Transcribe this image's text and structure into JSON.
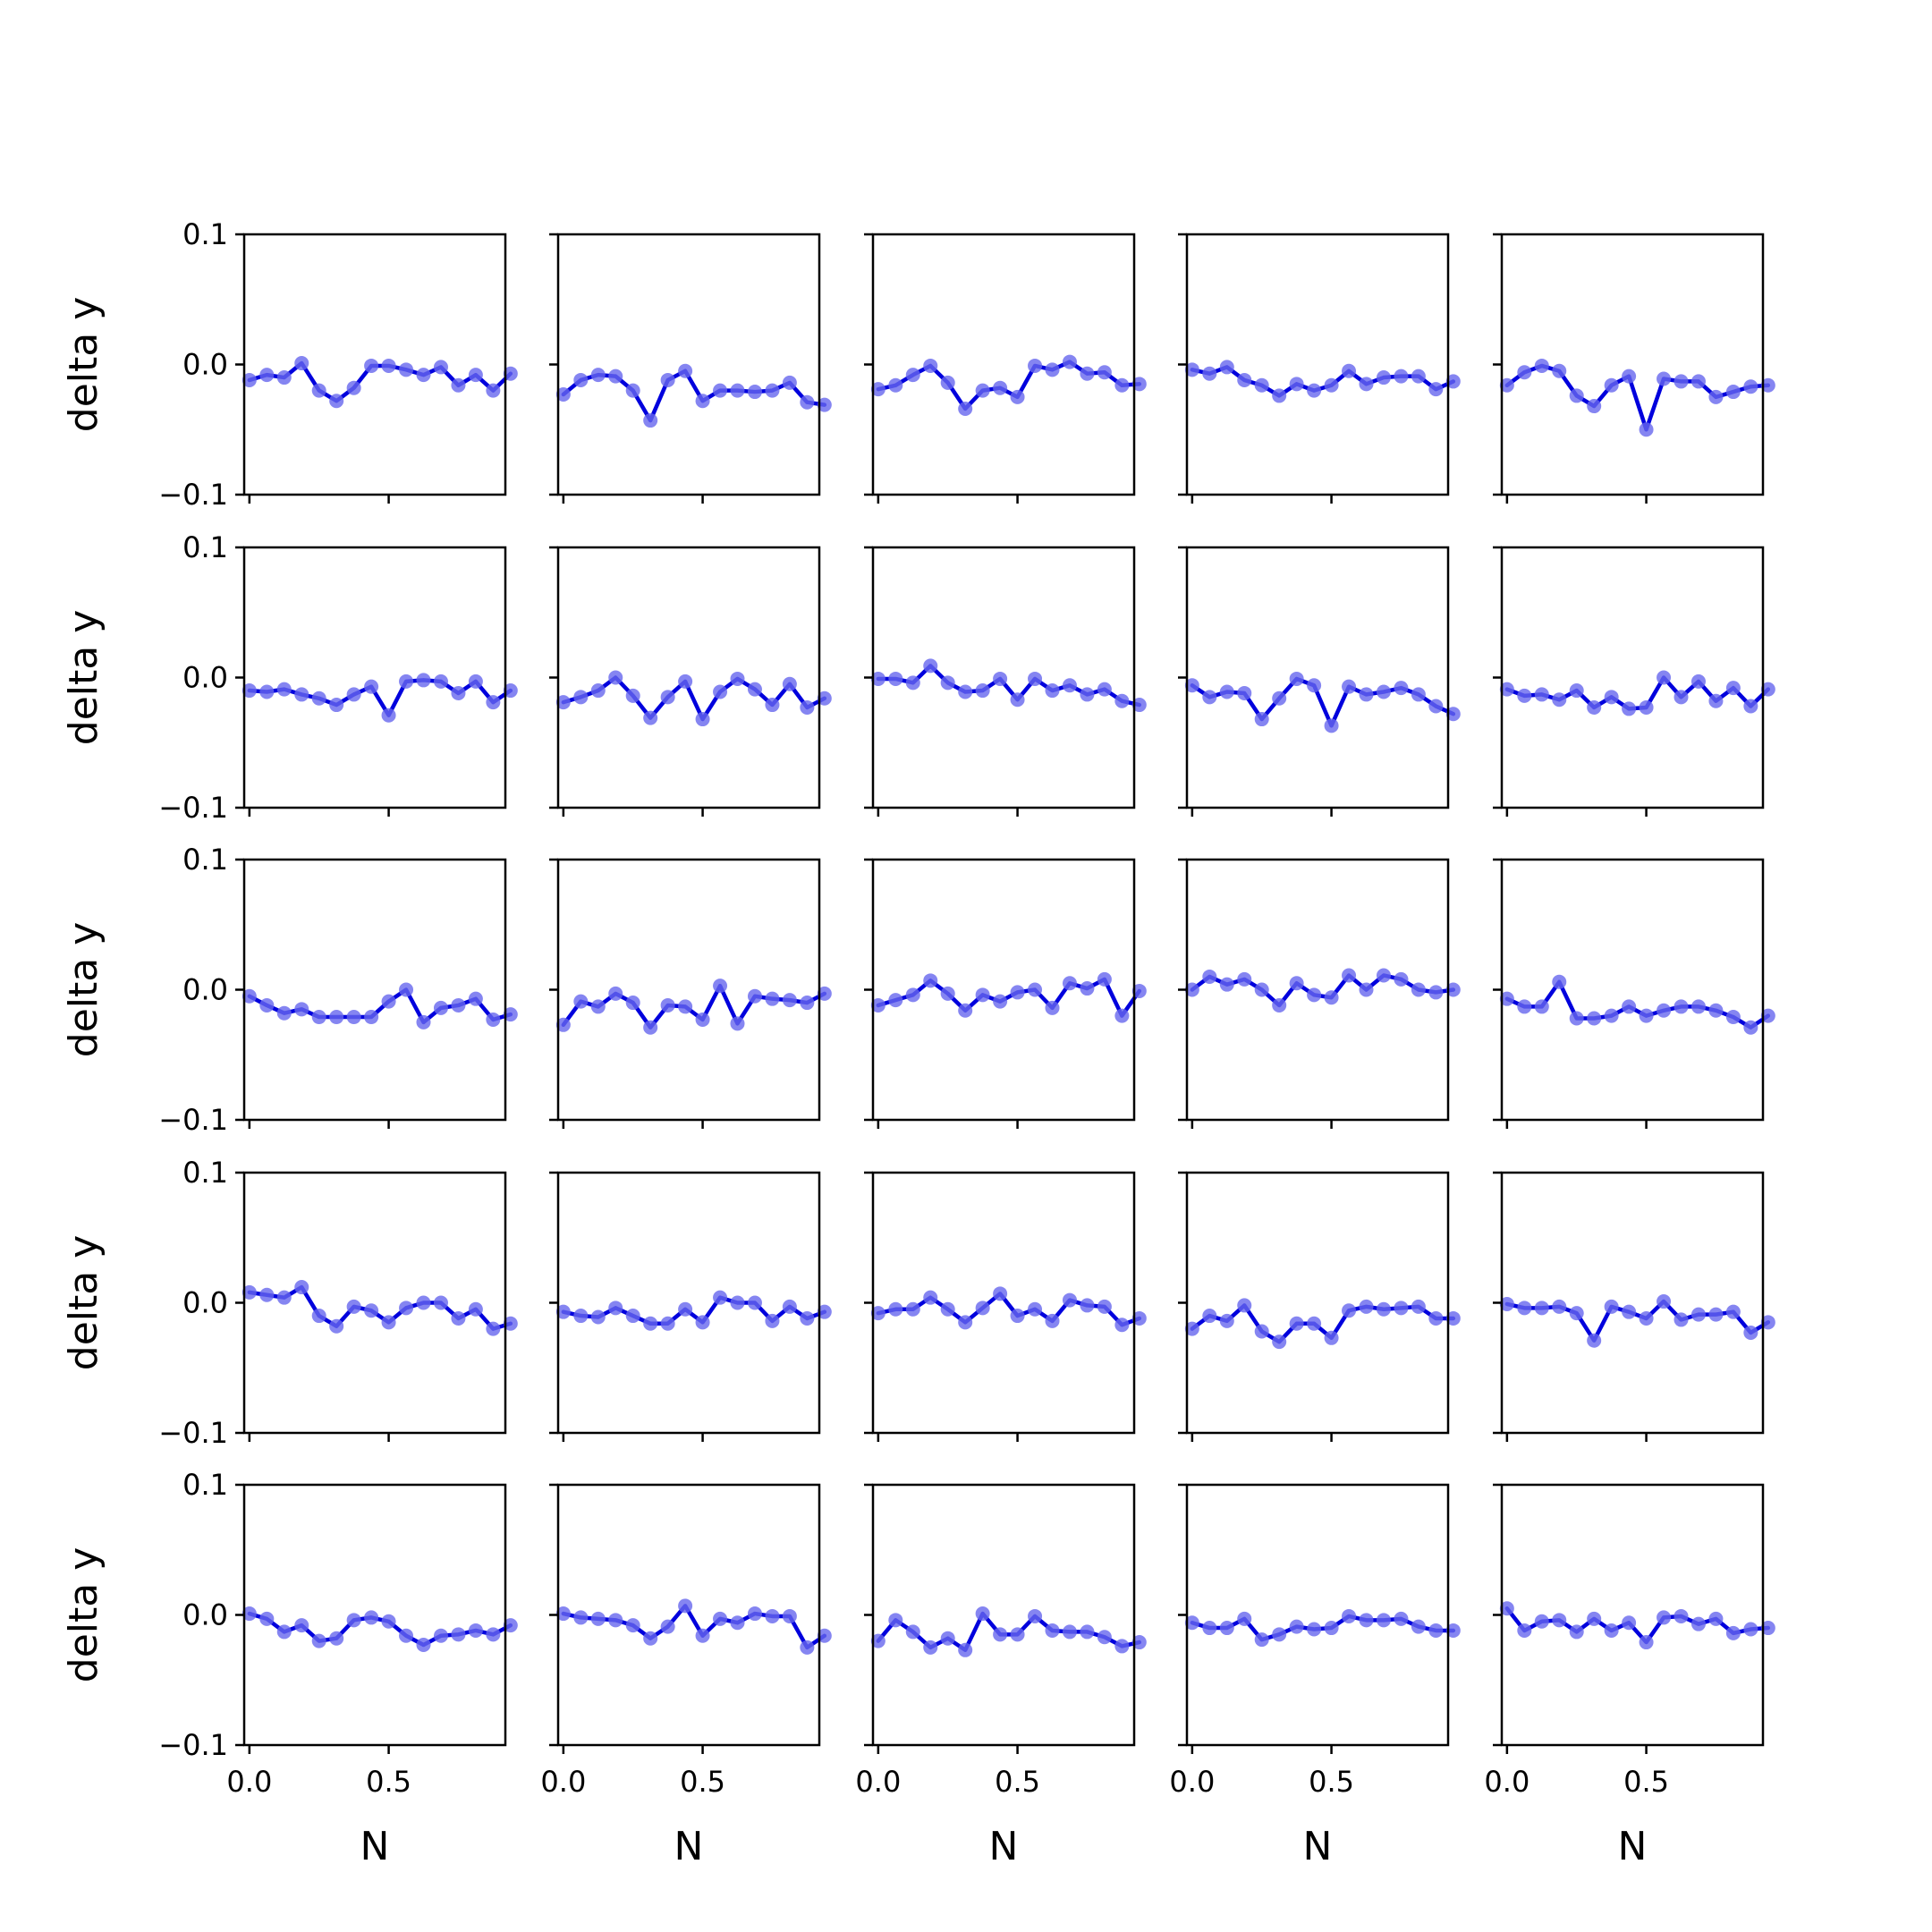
{
  "chart_data": {
    "type": "line",
    "layout": "5x5 grid of subplots",
    "xlabel": "N",
    "ylabel": "delta y",
    "xlim": [
      -0.0188,
      0.9188
    ],
    "ylim": [
      -0.1,
      0.1
    ],
    "xticks": [
      0.0,
      0.5
    ],
    "xtick_labels": [
      "0.0",
      "0.5"
    ],
    "yticks": [
      -0.1,
      0.0,
      0.1
    ],
    "ytick_labels": [
      "−0.1",
      "0.0",
      "0.1"
    ],
    "line_color": "#0000dd",
    "marker_color": "#6666ee",
    "x": [
      0.0,
      0.0625,
      0.125,
      0.1875,
      0.25,
      0.3125,
      0.375,
      0.4375,
      0.5,
      0.5625,
      0.625,
      0.6875,
      0.75,
      0.8125,
      0.875,
      0.9375
    ],
    "subplots": [
      {
        "row": 0,
        "col": 0,
        "values": [
          -0.012,
          -0.008,
          -0.01,
          0.001,
          -0.02,
          -0.028,
          -0.018,
          -0.001,
          -0.001,
          -0.004,
          -0.008,
          -0.002,
          -0.016,
          -0.008,
          -0.02,
          -0.007
        ]
      },
      {
        "row": 0,
        "col": 1,
        "values": [
          -0.023,
          -0.012,
          -0.008,
          -0.009,
          -0.02,
          -0.043,
          -0.012,
          -0.005,
          -0.028,
          -0.02,
          -0.02,
          -0.021,
          -0.02,
          -0.014,
          -0.029,
          -0.031
        ]
      },
      {
        "row": 0,
        "col": 2,
        "values": [
          -0.019,
          -0.016,
          -0.008,
          -0.001,
          -0.014,
          -0.034,
          -0.02,
          -0.018,
          -0.025,
          -0.001,
          -0.004,
          0.002,
          -0.007,
          -0.006,
          -0.016,
          -0.015
        ]
      },
      {
        "row": 0,
        "col": 3,
        "values": [
          -0.004,
          -0.007,
          -0.002,
          -0.012,
          -0.016,
          -0.024,
          -0.015,
          -0.02,
          -0.016,
          -0.005,
          -0.015,
          -0.01,
          -0.009,
          -0.009,
          -0.019,
          -0.013
        ]
      },
      {
        "row": 0,
        "col": 4,
        "values": [
          -0.016,
          -0.006,
          -0.001,
          -0.005,
          -0.024,
          -0.032,
          -0.016,
          -0.009,
          -0.05,
          -0.011,
          -0.013,
          -0.013,
          -0.025,
          -0.021,
          -0.017,
          -0.016
        ]
      },
      {
        "row": 1,
        "col": 0,
        "values": [
          -0.01,
          -0.011,
          -0.009,
          -0.013,
          -0.016,
          -0.021,
          -0.013,
          -0.007,
          -0.029,
          -0.003,
          -0.002,
          -0.003,
          -0.012,
          -0.003,
          -0.019,
          -0.01
        ]
      },
      {
        "row": 1,
        "col": 1,
        "values": [
          -0.019,
          -0.015,
          -0.01,
          0.0,
          -0.014,
          -0.031,
          -0.015,
          -0.003,
          -0.032,
          -0.011,
          -0.001,
          -0.009,
          -0.021,
          -0.005,
          -0.023,
          -0.016
        ]
      },
      {
        "row": 1,
        "col": 2,
        "values": [
          -0.001,
          -0.001,
          -0.004,
          0.009,
          -0.004,
          -0.011,
          -0.01,
          -0.001,
          -0.017,
          -0.001,
          -0.01,
          -0.006,
          -0.013,
          -0.009,
          -0.018,
          -0.021
        ]
      },
      {
        "row": 1,
        "col": 3,
        "values": [
          -0.006,
          -0.015,
          -0.011,
          -0.012,
          -0.032,
          -0.016,
          -0.001,
          -0.006,
          -0.037,
          -0.007,
          -0.013,
          -0.011,
          -0.008,
          -0.013,
          -0.022,
          -0.028
        ]
      },
      {
        "row": 1,
        "col": 4,
        "values": [
          -0.009,
          -0.014,
          -0.013,
          -0.017,
          -0.01,
          -0.023,
          -0.015,
          -0.024,
          -0.023,
          0.0,
          -0.015,
          -0.003,
          -0.018,
          -0.008,
          -0.022,
          -0.009
        ]
      },
      {
        "row": 2,
        "col": 0,
        "values": [
          -0.005,
          -0.012,
          -0.018,
          -0.015,
          -0.021,
          -0.021,
          -0.021,
          -0.021,
          -0.009,
          0.0,
          -0.025,
          -0.014,
          -0.012,
          -0.007,
          -0.023,
          -0.019
        ]
      },
      {
        "row": 2,
        "col": 1,
        "values": [
          -0.027,
          -0.009,
          -0.013,
          -0.003,
          -0.01,
          -0.029,
          -0.012,
          -0.013,
          -0.023,
          0.003,
          -0.026,
          -0.005,
          -0.007,
          -0.008,
          -0.01,
          -0.003
        ]
      },
      {
        "row": 2,
        "col": 2,
        "values": [
          -0.012,
          -0.008,
          -0.004,
          0.007,
          -0.003,
          -0.016,
          -0.004,
          -0.009,
          -0.002,
          0.0,
          -0.014,
          0.005,
          0.001,
          0.008,
          -0.02,
          -0.001
        ]
      },
      {
        "row": 2,
        "col": 3,
        "values": [
          0.0,
          0.01,
          0.004,
          0.008,
          0.0,
          -0.012,
          0.005,
          -0.004,
          -0.006,
          0.011,
          0.0,
          0.011,
          0.008,
          0.0,
          -0.002,
          0.0
        ]
      },
      {
        "row": 2,
        "col": 4,
        "values": [
          -0.007,
          -0.013,
          -0.013,
          0.006,
          -0.022,
          -0.022,
          -0.02,
          -0.013,
          -0.02,
          -0.016,
          -0.013,
          -0.013,
          -0.016,
          -0.021,
          -0.029,
          -0.02
        ]
      },
      {
        "row": 3,
        "col": 0,
        "values": [
          0.008,
          0.006,
          0.004,
          0.012,
          -0.01,
          -0.018,
          -0.003,
          -0.006,
          -0.015,
          -0.004,
          0.0,
          0.0,
          -0.012,
          -0.005,
          -0.02,
          -0.016
        ]
      },
      {
        "row": 3,
        "col": 1,
        "values": [
          -0.007,
          -0.01,
          -0.011,
          -0.004,
          -0.01,
          -0.016,
          -0.016,
          -0.005,
          -0.015,
          0.004,
          0.0,
          0.0,
          -0.014,
          -0.003,
          -0.012,
          -0.007
        ]
      },
      {
        "row": 3,
        "col": 2,
        "values": [
          -0.008,
          -0.005,
          -0.005,
          0.004,
          -0.005,
          -0.015,
          -0.004,
          0.007,
          -0.01,
          -0.005,
          -0.014,
          0.002,
          -0.002,
          -0.003,
          -0.017,
          -0.012
        ]
      },
      {
        "row": 3,
        "col": 3,
        "values": [
          -0.02,
          -0.01,
          -0.014,
          -0.002,
          -0.022,
          -0.03,
          -0.016,
          -0.016,
          -0.027,
          -0.006,
          -0.003,
          -0.005,
          -0.004,
          -0.003,
          -0.012,
          -0.012
        ]
      },
      {
        "row": 3,
        "col": 4,
        "values": [
          -0.001,
          -0.004,
          -0.004,
          -0.003,
          -0.008,
          -0.029,
          -0.003,
          -0.007,
          -0.012,
          0.001,
          -0.013,
          -0.009,
          -0.009,
          -0.007,
          -0.023,
          -0.015
        ]
      },
      {
        "row": 4,
        "col": 0,
        "values": [
          0.001,
          -0.003,
          -0.013,
          -0.008,
          -0.02,
          -0.018,
          -0.004,
          -0.002,
          -0.005,
          -0.016,
          -0.023,
          -0.016,
          -0.015,
          -0.012,
          -0.015,
          -0.008
        ]
      },
      {
        "row": 4,
        "col": 1,
        "values": [
          0.001,
          -0.002,
          -0.003,
          -0.004,
          -0.008,
          -0.018,
          -0.009,
          0.007,
          -0.016,
          -0.003,
          -0.006,
          0.001,
          -0.001,
          -0.001,
          -0.025,
          -0.016
        ]
      },
      {
        "row": 4,
        "col": 2,
        "values": [
          -0.02,
          -0.004,
          -0.013,
          -0.025,
          -0.018,
          -0.027,
          0.001,
          -0.015,
          -0.015,
          -0.001,
          -0.012,
          -0.013,
          -0.013,
          -0.017,
          -0.024,
          -0.021
        ]
      },
      {
        "row": 4,
        "col": 3,
        "values": [
          -0.006,
          -0.01,
          -0.01,
          -0.003,
          -0.019,
          -0.015,
          -0.009,
          -0.011,
          -0.01,
          -0.001,
          -0.004,
          -0.004,
          -0.003,
          -0.009,
          -0.012,
          -0.012
        ]
      },
      {
        "row": 4,
        "col": 4,
        "values": [
          0.005,
          -0.012,
          -0.005,
          -0.004,
          -0.013,
          -0.003,
          -0.012,
          -0.006,
          -0.021,
          -0.002,
          -0.001,
          -0.007,
          -0.003,
          -0.014,
          -0.011,
          -0.01
        ]
      }
    ]
  }
}
